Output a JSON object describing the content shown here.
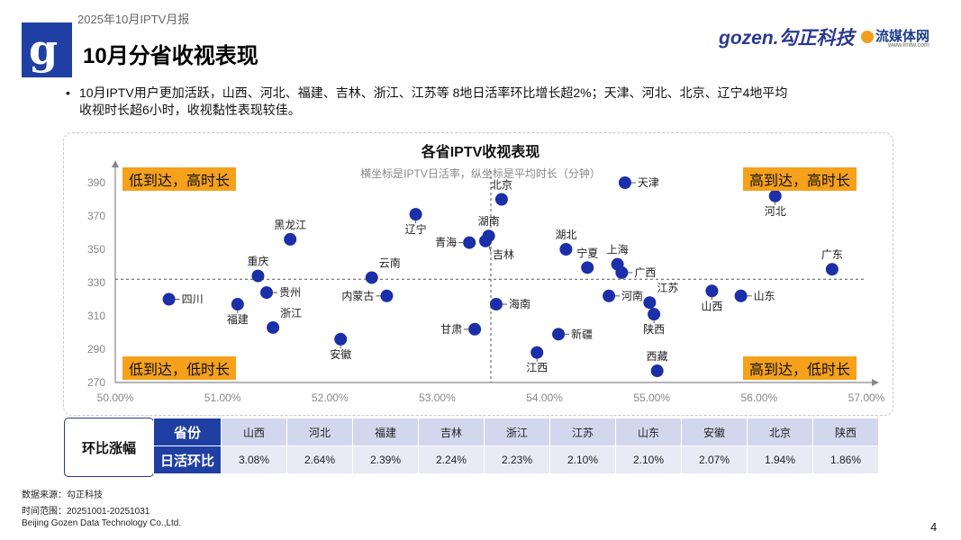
{
  "header": {
    "report_label": "2025年10月IPTV月报",
    "title": "10月分省收视表现",
    "brand_gozen": "gozen.勾正科技",
    "brand_lmtw": "流媒体网",
    "brand_lmtw_url": "www.lmtw.com"
  },
  "bullet": {
    "line1": "10月IPTV用户更加活跃，山西、河北、福建、吉林、浙江、江苏等 8地日活率环比增长超2%；天津、河北、北京、辽宁4地平均",
    "line2": "收视时长超6小时，收视黏性表现较佳。"
  },
  "quadrants": {
    "top_left": "低到达，高时长",
    "top_right": "高到达，高时长",
    "bottom_left": "低到达，低时长",
    "bottom_right": "高到达，低时长"
  },
  "chart_data": {
    "type": "scatter",
    "title": "各省IPTV收视表现",
    "subtitle": "横坐标是IPTV日活率，纵坐标是平均时长（分钟）",
    "xlim": [
      50,
      57
    ],
    "ylim": [
      270,
      395
    ],
    "x_ticks": [
      50,
      51,
      52,
      53,
      54,
      55,
      56,
      57
    ],
    "x_tick_labels": [
      "50.00%",
      "51.00%",
      "52.00%",
      "53.00%",
      "54.00%",
      "55.00%",
      "56.00%",
      "57.00%"
    ],
    "y_ticks": [
      270,
      290,
      310,
      330,
      350,
      370,
      390
    ],
    "y_tick_labels": [
      "270",
      "290",
      "310",
      "330",
      "350",
      "370",
      "390"
    ],
    "ref_x": 53.5,
    "ref_y": 332,
    "point_color": "#1a2fa8",
    "points": [
      {
        "name": "天津",
        "x": 54.75,
        "y": 390,
        "label_pos": "right"
      },
      {
        "name": "北京",
        "x": 53.6,
        "y": 380,
        "label_pos": "top"
      },
      {
        "name": "河北",
        "x": 56.15,
        "y": 382,
        "label_pos": "bottom"
      },
      {
        "name": "辽宁",
        "x": 52.8,
        "y": 371,
        "label_pos": "bottom"
      },
      {
        "name": "湖南",
        "x": 53.48,
        "y": 358,
        "label_pos": "top"
      },
      {
        "name": "黑龙江",
        "x": 51.63,
        "y": 356,
        "label_pos": "top"
      },
      {
        "name": "青海",
        "x": 53.3,
        "y": 354,
        "label_pos": "left"
      },
      {
        "name": "吉林",
        "x": 53.45,
        "y": 355,
        "label_pos": "bottomright"
      },
      {
        "name": "湖北",
        "x": 54.2,
        "y": 350,
        "label_pos": "top"
      },
      {
        "name": "宁夏",
        "x": 54.4,
        "y": 339,
        "label_pos": "top"
      },
      {
        "name": "上海",
        "x": 54.68,
        "y": 341,
        "label_pos": "top"
      },
      {
        "name": "广西",
        "x": 54.72,
        "y": 336,
        "label_pos": "right"
      },
      {
        "name": "广东",
        "x": 56.68,
        "y": 338,
        "label_pos": "top"
      },
      {
        "name": "云南",
        "x": 52.39,
        "y": 333,
        "label_pos": "topright"
      },
      {
        "name": "重庆",
        "x": 51.33,
        "y": 334,
        "label_pos": "top"
      },
      {
        "name": "贵州",
        "x": 51.41,
        "y": 324,
        "label_pos": "right"
      },
      {
        "name": "内蒙古",
        "x": 52.53,
        "y": 322,
        "label_pos": "left"
      },
      {
        "name": "河南",
        "x": 54.6,
        "y": 322,
        "label_pos": "right"
      },
      {
        "name": "山西",
        "x": 55.56,
        "y": 325,
        "label_pos": "bottom"
      },
      {
        "name": "山东",
        "x": 55.83,
        "y": 322,
        "label_pos": "right"
      },
      {
        "name": "四川",
        "x": 50.5,
        "y": 320,
        "label_pos": "right"
      },
      {
        "name": "福建",
        "x": 51.14,
        "y": 317,
        "label_pos": "bottom"
      },
      {
        "name": "海南",
        "x": 53.55,
        "y": 317,
        "label_pos": "right"
      },
      {
        "name": "江苏",
        "x": 54.98,
        "y": 318,
        "label_pos": "topright"
      },
      {
        "name": "陕西",
        "x": 55.02,
        "y": 311,
        "label_pos": "bottom"
      },
      {
        "name": "浙江",
        "x": 51.47,
        "y": 303,
        "label_pos": "topright"
      },
      {
        "name": "甘肃",
        "x": 53.35,
        "y": 302,
        "label_pos": "left"
      },
      {
        "name": "新疆",
        "x": 54.13,
        "y": 299,
        "label_pos": "right"
      },
      {
        "name": "安徽",
        "x": 52.1,
        "y": 296,
        "label_pos": "bottom"
      },
      {
        "name": "江西",
        "x": 53.93,
        "y": 288,
        "label_pos": "bottom"
      },
      {
        "name": "西藏",
        "x": 55.05,
        "y": 277,
        "label_pos": "top"
      }
    ]
  },
  "table": {
    "side_label": "环比涨幅",
    "row1_header": "省份",
    "row2_header": "日活环比",
    "provinces": [
      "山西",
      "河北",
      "福建",
      "吉林",
      "浙江",
      "江苏",
      "山东",
      "安徽",
      "北京",
      "陕西"
    ],
    "changes": [
      "3.08%",
      "2.64%",
      "2.39%",
      "2.24%",
      "2.23%",
      "2.10%",
      "2.10%",
      "2.07%",
      "1.94%",
      "1.86%"
    ]
  },
  "footer": {
    "source": "数据来源：勾正科技",
    "period": "时间范围：20251001-20251031",
    "company": "Beijing Gozen Data Technology Co.,Ltd.",
    "page_number": "4"
  },
  "colors": {
    "accent": "#1f3fa3",
    "quadrant": "#f5a11c"
  }
}
